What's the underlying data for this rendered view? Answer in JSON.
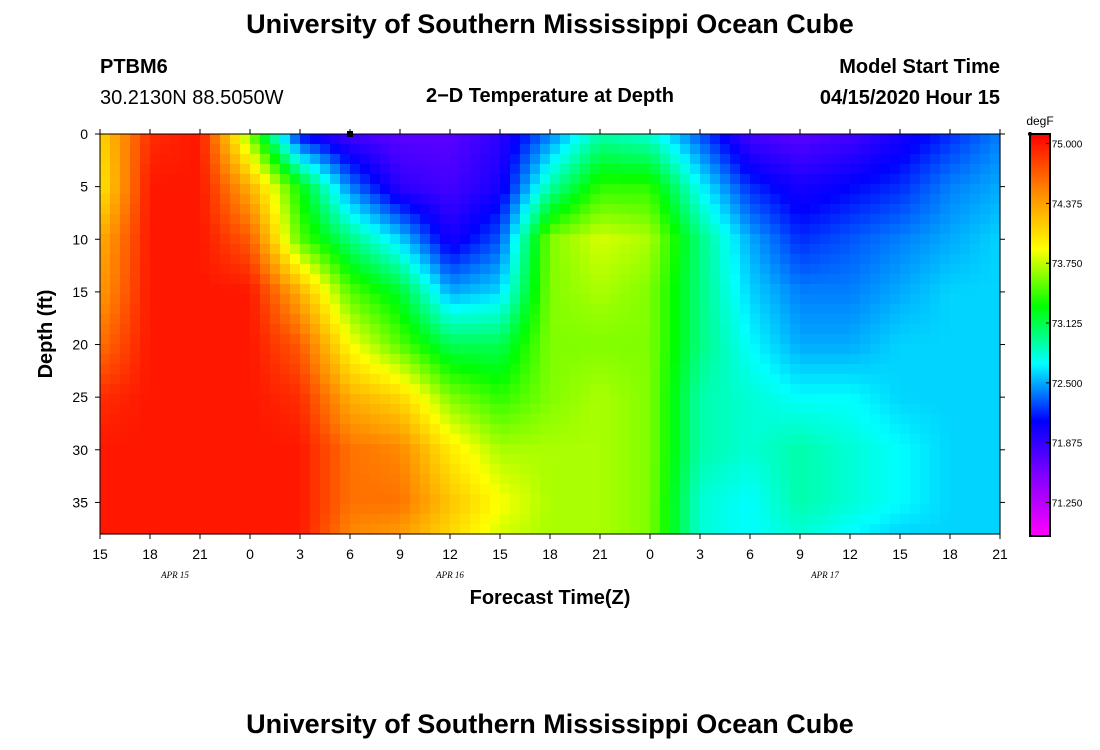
{
  "titles": {
    "top": "University of Southern Mississippi Ocean Cube",
    "bottom": "University of Southern Mississippi Ocean Cube"
  },
  "header": {
    "station": "PTBM6",
    "coords": "30.2130N 88.5050W",
    "plot_title": "2−D Temperature at Depth",
    "model_start_label": "Model Start Time",
    "model_start_value": "04/15/2020 Hour 15"
  },
  "chart_data": {
    "type": "heatmap",
    "title": "2−D Temperature at Depth",
    "xlabel": "Forecast Time(Z)",
    "ylabel": "Depth (ft)",
    "x_ticks": [
      "15",
      "18",
      "21",
      "0",
      "3",
      "6",
      "9",
      "12",
      "15",
      "18",
      "21",
      "0",
      "3",
      "6",
      "9",
      "12",
      "15",
      "18",
      "21"
    ],
    "x_range_hours": [
      0,
      54
    ],
    "date_labels": [
      {
        "text": "APR 15",
        "hour": 4.5
      },
      {
        "text": "APR 16",
        "hour": 21
      },
      {
        "text": "APR 17",
        "hour": 43.5
      }
    ],
    "y_ticks": [
      0,
      5,
      10,
      15,
      20,
      25,
      30,
      35
    ],
    "y_range": [
      0,
      38
    ],
    "marker": {
      "hour": 15,
      "depth": 0
    },
    "colorbar": {
      "unit": "degF",
      "ticks": [
        "75.000",
        "74.375",
        "73.750",
        "73.125",
        "72.500",
        "71.875",
        "71.250"
      ],
      "vmin": 70.9,
      "vmax": 75.1,
      "colors": [
        "#ff00ff",
        "#8800ff",
        "#0000ff",
        "#00ffff",
        "#00ff00",
        "#ffff00",
        "#ff8800",
        "#ff0000"
      ]
    },
    "grid_hours": [
      0,
      3,
      6,
      9,
      12,
      15,
      18,
      21,
      24,
      27,
      30,
      33,
      36,
      39,
      42,
      45,
      48,
      51,
      54
    ],
    "grid_depths": [
      0,
      5,
      10,
      15,
      20,
      25,
      30,
      35,
      38
    ],
    "values": [
      [
        74.1,
        74.9,
        75.0,
        73.6,
        72.1,
        71.8,
        71.7,
        71.7,
        71.9,
        72.4,
        72.9,
        72.8,
        72.3,
        71.8,
        71.7,
        71.8,
        72.0,
        72.2,
        72.4
      ],
      [
        74.0,
        75.0,
        75.0,
        74.3,
        73.3,
        72.4,
        71.9,
        71.8,
        72.0,
        72.9,
        73.4,
        73.4,
        72.7,
        72.2,
        72.0,
        72.1,
        72.2,
        72.4,
        72.5
      ],
      [
        74.3,
        75.0,
        75.0,
        74.7,
        73.5,
        73.0,
        72.6,
        72.0,
        72.3,
        73.6,
        73.8,
        73.7,
        73.0,
        72.5,
        72.2,
        72.3,
        72.4,
        72.5,
        72.6
      ],
      [
        74.4,
        75.0,
        75.0,
        75.0,
        74.3,
        73.5,
        73.2,
        72.5,
        72.6,
        73.6,
        73.7,
        73.6,
        73.0,
        72.6,
        72.4,
        72.4,
        72.5,
        72.6,
        72.6
      ],
      [
        74.6,
        75.0,
        75.0,
        75.0,
        74.7,
        73.9,
        73.5,
        73.1,
        73.1,
        73.6,
        73.6,
        73.6,
        73.0,
        72.7,
        72.5,
        72.5,
        72.6,
        72.6,
        72.6
      ],
      [
        74.9,
        75.0,
        75.0,
        75.0,
        74.9,
        74.3,
        74.1,
        73.6,
        73.4,
        73.6,
        73.7,
        73.6,
        72.9,
        72.8,
        72.7,
        72.7,
        72.6,
        72.6,
        72.6
      ],
      [
        75.0,
        75.0,
        75.0,
        75.0,
        75.0,
        74.6,
        74.5,
        74.0,
        73.7,
        73.7,
        73.7,
        73.6,
        72.9,
        72.8,
        72.9,
        72.8,
        72.7,
        72.6,
        72.6
      ],
      [
        75.0,
        75.0,
        75.0,
        75.0,
        75.0,
        74.6,
        74.6,
        74.2,
        73.9,
        73.7,
        73.7,
        73.6,
        72.8,
        72.7,
        72.9,
        72.8,
        72.7,
        72.6,
        72.6
      ],
      [
        75.0,
        75.0,
        75.0,
        75.0,
        75.0,
        74.5,
        74.4,
        74.1,
        73.8,
        73.7,
        73.7,
        73.6,
        72.8,
        72.7,
        72.8,
        72.7,
        72.6,
        72.6,
        72.6
      ]
    ]
  }
}
